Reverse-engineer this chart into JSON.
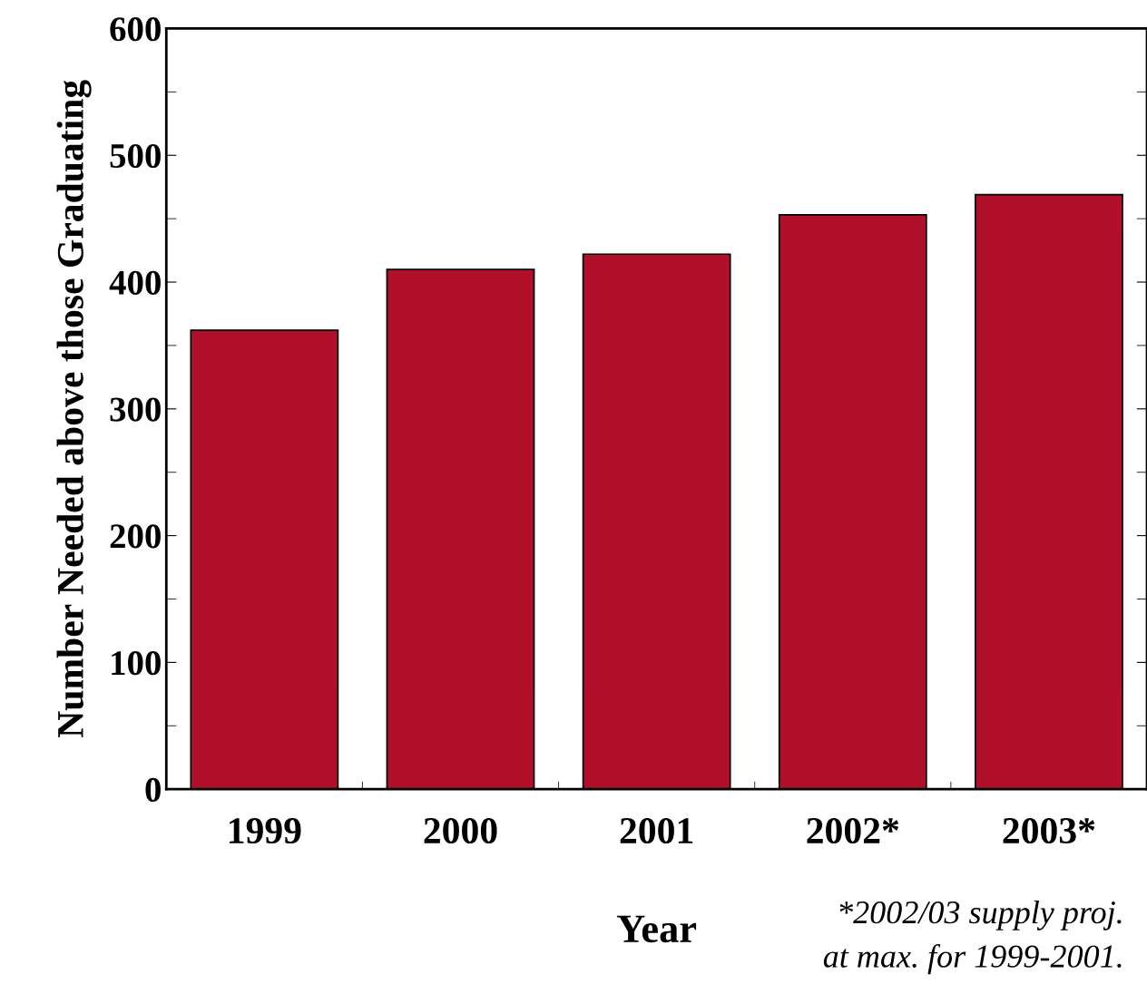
{
  "chart_data": {
    "type": "bar",
    "categories": [
      "1999",
      "2000",
      "2001",
      "2002*",
      "2003*"
    ],
    "values": [
      362,
      410,
      422,
      453,
      469
    ],
    "color": "#b0102a",
    "xlabel": "Year",
    "ylabel": "Number Needed above those Graduating",
    "ylim": [
      0,
      600
    ],
    "yticks": [
      0,
      100,
      200,
      300,
      400,
      500,
      600
    ],
    "grid": false,
    "legend": false,
    "annotations": [
      "*2002/03 supply proj.\nat max. for 1999-2001."
    ]
  }
}
